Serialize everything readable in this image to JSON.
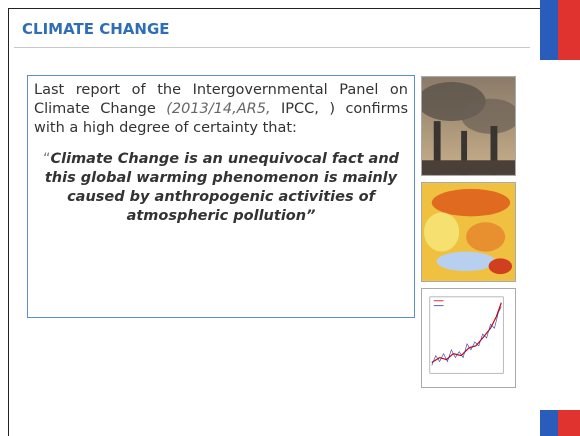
{
  "header": {
    "title": "CLIMATE CHANGE"
  },
  "paragraph": {
    "lead": "Last report of the Intergovernmental Panel on Climate Change",
    "citation_italic": "(2013/14,AR5,",
    "citation_rest": "IPCC, ) confirms with a high degree of certainty that:"
  },
  "quote": {
    "open": "“",
    "text": "Climate Change is an unequivocal fact and this global warming phenomenon is mainly caused by anthropogenic activities of atmospheric pollution",
    "close": "”"
  }
}
